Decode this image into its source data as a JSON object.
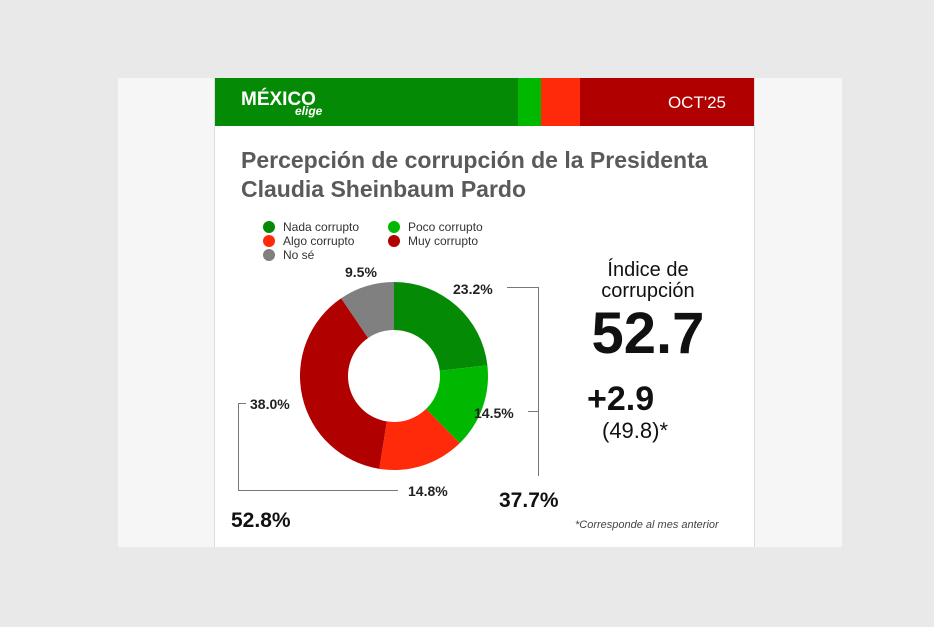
{
  "header": {
    "logo_main": "MÉXICO",
    "logo_sub": "elige",
    "date": "OCT'25",
    "band_colors": [
      "#058a05",
      "#00b800",
      "#ff2a0a",
      "#b00000"
    ]
  },
  "title": "Percepción de corrupción de la Presidenta Claudia Sheinbaum Pardo",
  "chart_data": {
    "type": "pie",
    "donut": true,
    "categories": [
      "Nada corrupto",
      "Poco corrupto",
      "Algo corrupto",
      "Muy corrupto",
      "No sé"
    ],
    "values": [
      23.2,
      14.5,
      14.8,
      38.0,
      9.5
    ],
    "colors": [
      "#058a05",
      "#00b800",
      "#ff2a0a",
      "#b00000",
      "#808080"
    ],
    "labels": [
      "23.2%",
      "14.5%",
      "14.8%",
      "38.0%",
      "9.5%"
    ],
    "legend_position": "top-left",
    "group_totals": {
      "positive": "37.7%",
      "negative": "52.8%"
    }
  },
  "index": {
    "label": "Índice de corrupción",
    "value": "52.7",
    "delta": "+2.9",
    "previous": "(49.8)*"
  },
  "note": "*Corresponde al mes anterior"
}
